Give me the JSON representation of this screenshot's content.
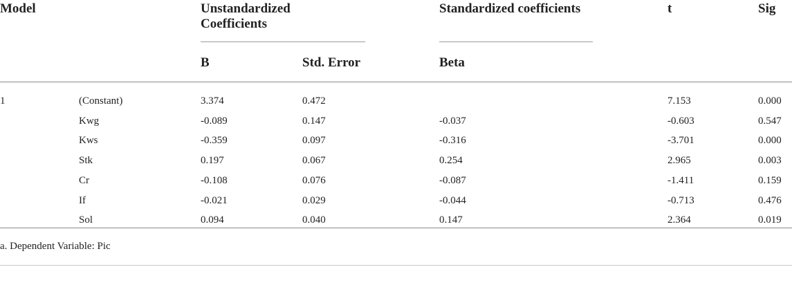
{
  "header": {
    "model": "Model",
    "unstd_line1": "Unstandardized",
    "unstd_line2": "Coefficients",
    "std": "Standardized coefficients",
    "t": "t",
    "sig": "Sig",
    "b": "B",
    "std_error": "Std. Error",
    "beta": "Beta"
  },
  "rows": [
    {
      "model": "1",
      "var": "(Constant)",
      "b": "3.374",
      "se": "0.472",
      "beta": "",
      "t": "7.153",
      "sig": "0.000"
    },
    {
      "model": "",
      "var": "Kwg",
      "b": "-0.089",
      "se": "0.147",
      "beta": "-0.037",
      "t": "-0.603",
      "sig": "0.547"
    },
    {
      "model": "",
      "var": "Kws",
      "b": "-0.359",
      "se": "0.097",
      "beta": "-0.316",
      "t": "-3.701",
      "sig": "0.000"
    },
    {
      "model": "",
      "var": "Stk",
      "b": "0.197",
      "se": "0.067",
      "beta": "0.254",
      "t": "2.965",
      "sig": "0.003"
    },
    {
      "model": "",
      "var": "Cr",
      "b": "-0.108",
      "se": "0.076",
      "beta": "-0.087",
      "t": "-1.411",
      "sig": "0.159"
    },
    {
      "model": "",
      "var": "If",
      "b": "-0.021",
      "se": "0.029",
      "beta": "-0.044",
      "t": "-0.713",
      "sig": "0.476"
    },
    {
      "model": "",
      "var": "Sol",
      "b": "0.094",
      "se": "0.040",
      "beta": "0.147",
      "t": "2.364",
      "sig": "0.019"
    }
  ],
  "footnote": "a. Dependent Variable: Pic"
}
